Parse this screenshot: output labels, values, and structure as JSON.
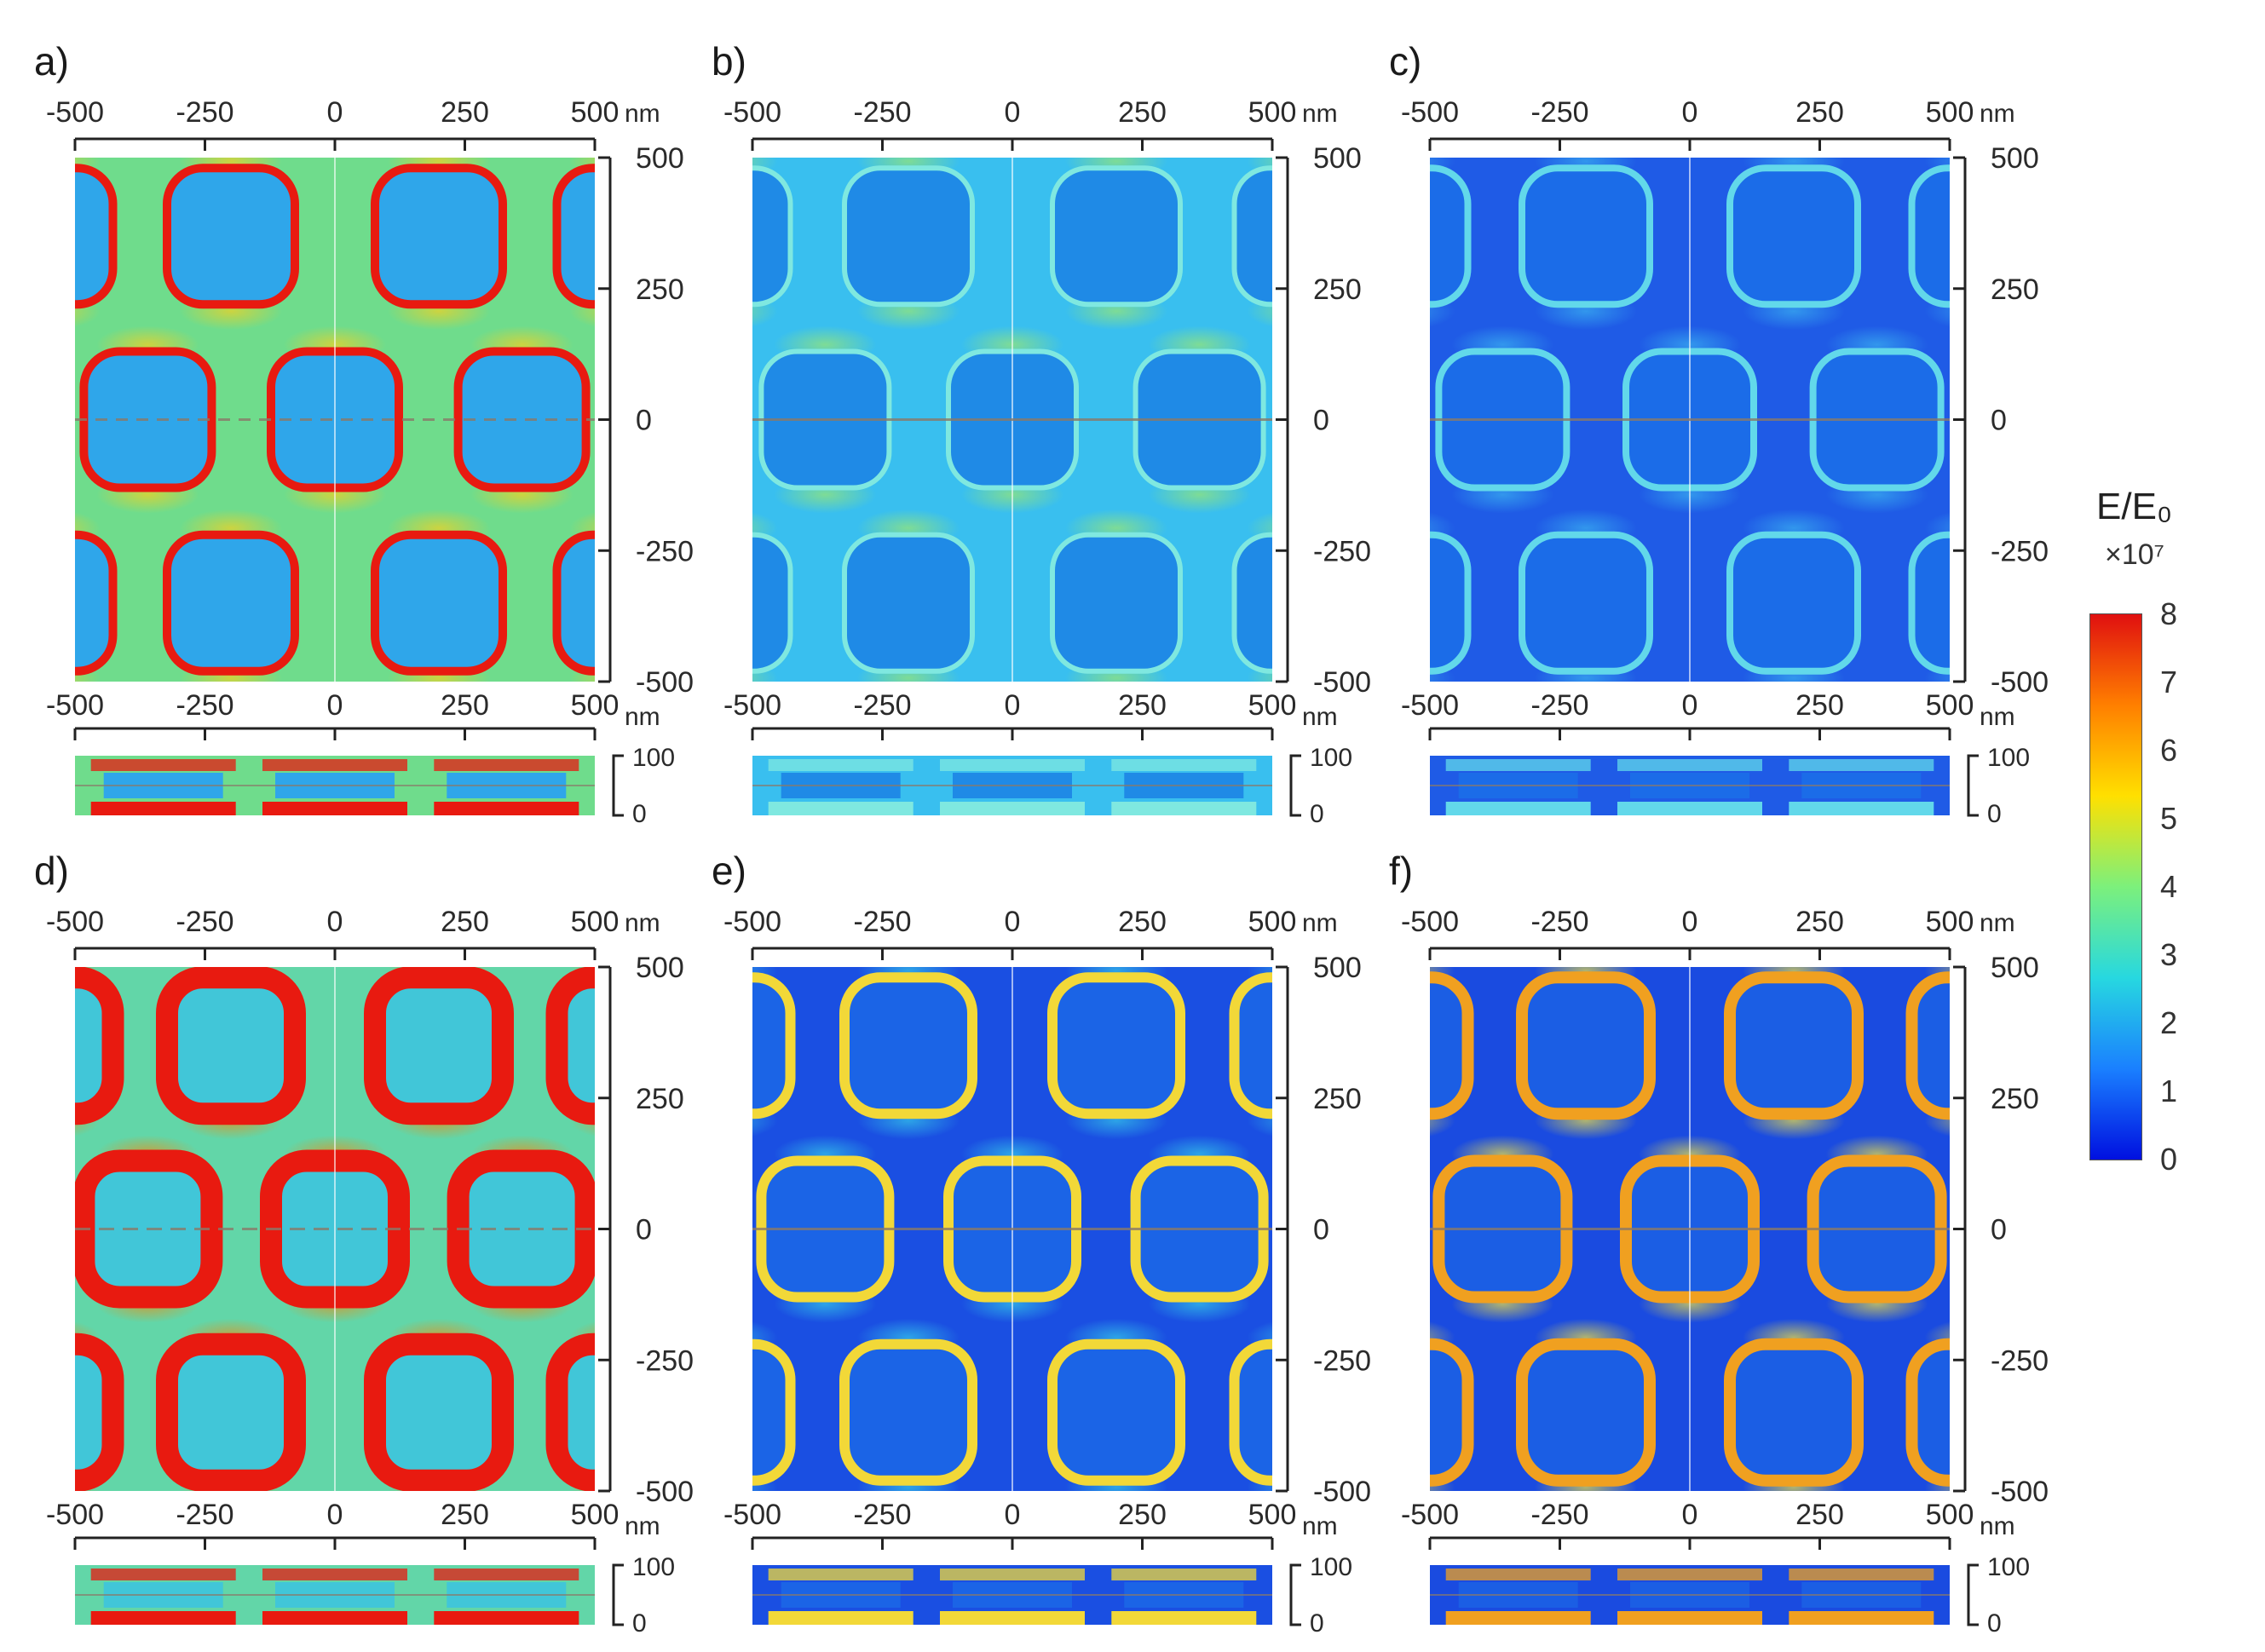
{
  "axis": {
    "ticks": [
      "-500",
      "-250",
      "0",
      "250",
      "500"
    ],
    "unit": "nm",
    "side_ticks": [
      "500",
      "250",
      "0",
      "-250",
      "-500"
    ],
    "cross_ticks": [
      "100",
      "0"
    ]
  },
  "panels": [
    {
      "label": "a)",
      "style": "green_bg_red_blobs"
    },
    {
      "label": "b)",
      "style": "cyan_light_rings"
    },
    {
      "label": "c)",
      "style": "blue_light_rings"
    },
    {
      "label": "d)",
      "style": "green_bg_red_rings"
    },
    {
      "label": "e)",
      "style": "blue_yellow_rings"
    },
    {
      "label": "f)",
      "style": "blue_orange_rings"
    }
  ],
  "colorbar": {
    "title": "E/E₀",
    "multiplier": "×10⁷",
    "ticks": [
      "8",
      "7",
      "6",
      "5",
      "4",
      "3",
      "2",
      "1",
      "0"
    ],
    "colors": [
      "#e01010",
      "#ff7f00",
      "#ffe000",
      "#7cf07c",
      "#27d8e0",
      "#1a80ff",
      "#0010e0"
    ]
  }
}
